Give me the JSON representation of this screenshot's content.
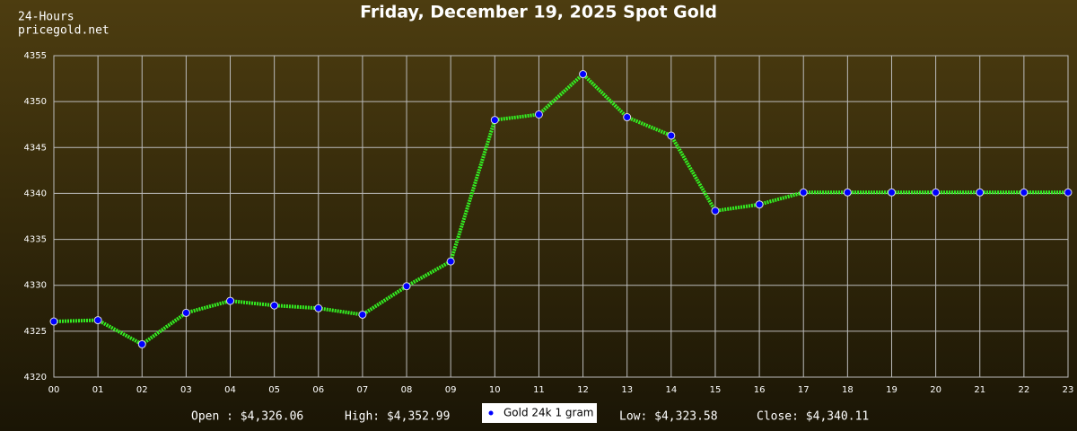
{
  "chart_data": {
    "type": "line",
    "title": "Friday, December 19, 2025 Spot Gold",
    "subtitle": [
      "24-Hours",
      "pricegold.net"
    ],
    "categories": [
      "00",
      "01",
      "02",
      "03",
      "04",
      "05",
      "06",
      "07",
      "08",
      "09",
      "10",
      "11",
      "12",
      "13",
      "14",
      "15",
      "16",
      "17",
      "18",
      "19",
      "20",
      "21",
      "22",
      "23"
    ],
    "series": [
      {
        "name": "Gold 24k 1 gram",
        "color": "#33ee22",
        "marker_color": "#0000ff",
        "values": [
          4326.06,
          4326.2,
          4323.58,
          4327.0,
          4328.3,
          4327.8,
          4327.5,
          4326.8,
          4329.9,
          4332.6,
          4348.0,
          4348.6,
          4352.99,
          4348.3,
          4346.3,
          4338.1,
          4338.8,
          4340.11,
          4340.11,
          4340.11,
          4340.11,
          4340.11,
          4340.11,
          4340.11
        ]
      }
    ],
    "ylim": [
      4320,
      4355
    ],
    "yticks": [
      4320,
      4325,
      4330,
      4335,
      4340,
      4345,
      4350,
      4355
    ],
    "grid": true,
    "annotations": [
      "Open : $4,326.06",
      "High: $4,352.99",
      "Low: $4,323.58",
      "Close: $4,340.11"
    ]
  }
}
